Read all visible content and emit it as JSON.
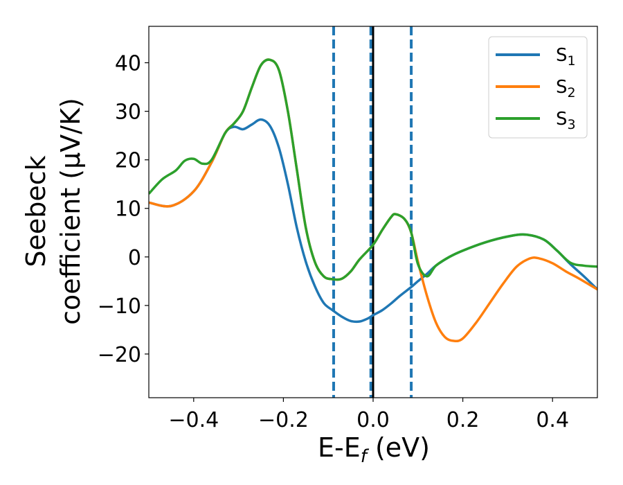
{
  "chart_data": {
    "type": "line",
    "xlabel": {
      "main": "E-E",
      "sub": "f",
      "unit": " (eV)"
    },
    "ylabel": {
      "line1": "Seebeck",
      "line2": "coefficient  (μV/K)"
    },
    "xlim": [
      -0.5,
      0.5
    ],
    "ylim": [
      -29,
      47.5
    ],
    "xticks": [
      -0.4,
      -0.2,
      0.0,
      0.2,
      0.4
    ],
    "xtick_labels": [
      "−0.4",
      "−0.2",
      "0.0",
      "0.2",
      "0.4"
    ],
    "yticks": [
      -20,
      -10,
      0,
      10,
      20,
      30,
      40
    ],
    "ytick_labels": [
      "−20",
      "−10",
      "0",
      "10",
      "20",
      "30",
      "40"
    ],
    "legend": {
      "position": "top-right"
    },
    "vlines": [
      {
        "x": -0.088,
        "style": "dashed",
        "color": "#1f77b4"
      },
      {
        "x": -0.005,
        "style": "dashed",
        "color": "#1f77b4"
      },
      {
        "x": 0.0,
        "style": "solid",
        "color": "#000000"
      },
      {
        "x": 0.085,
        "style": "dashed",
        "color": "#1f77b4"
      }
    ],
    "series": [
      {
        "name": "S",
        "sub": "1",
        "color": "#1f77b4",
        "points": [
          [
            -0.5,
            11.2
          ],
          [
            -0.45,
            10.5
          ],
          [
            -0.4,
            13.5
          ],
          [
            -0.36,
            19.5
          ],
          [
            -0.33,
            25.5
          ],
          [
            -0.31,
            26.8
          ],
          [
            -0.29,
            26.3
          ],
          [
            -0.27,
            27.3
          ],
          [
            -0.25,
            28.3
          ],
          [
            -0.23,
            27.0
          ],
          [
            -0.21,
            22.5
          ],
          [
            -0.19,
            15.0
          ],
          [
            -0.17,
            6.0
          ],
          [
            -0.15,
            -1.0
          ],
          [
            -0.13,
            -6.0
          ],
          [
            -0.11,
            -9.5
          ],
          [
            -0.09,
            -11.0
          ],
          [
            -0.07,
            -12.3
          ],
          [
            -0.05,
            -13.2
          ],
          [
            -0.03,
            -13.3
          ],
          [
            -0.01,
            -12.6
          ],
          [
            0.0,
            -12.0
          ],
          [
            0.02,
            -11.0
          ],
          [
            0.04,
            -9.6
          ],
          [
            0.06,
            -8.0
          ],
          [
            0.085,
            -6.2
          ],
          [
            0.1,
            -5.0
          ],
          [
            0.12,
            -3.5
          ],
          [
            0.14,
            -1.8
          ],
          [
            0.17,
            0.0
          ],
          [
            0.2,
            1.3
          ],
          [
            0.25,
            3.0
          ],
          [
            0.3,
            4.2
          ],
          [
            0.34,
            4.6
          ],
          [
            0.38,
            3.6
          ],
          [
            0.41,
            1.3
          ],
          [
            0.44,
            -1.5
          ],
          [
            0.47,
            -4.0
          ],
          [
            0.5,
            -6.7
          ]
        ]
      },
      {
        "name": "S",
        "sub": "2",
        "color": "#ff7f0e",
        "points": [
          [
            -0.5,
            11.2
          ],
          [
            -0.45,
            10.5
          ],
          [
            -0.4,
            13.5
          ],
          [
            -0.36,
            19.5
          ],
          [
            -0.33,
            25.5
          ],
          [
            -0.31,
            27.5
          ],
          [
            -0.29,
            30.0
          ],
          [
            -0.27,
            35.0
          ],
          [
            -0.25,
            39.5
          ],
          [
            -0.23,
            40.6
          ],
          [
            -0.21,
            38.5
          ],
          [
            -0.19,
            30.0
          ],
          [
            -0.17,
            18.0
          ],
          [
            -0.15,
            6.0
          ],
          [
            -0.13,
            -1.0
          ],
          [
            -0.11,
            -4.0
          ],
          [
            -0.09,
            -4.6
          ],
          [
            -0.07,
            -4.5
          ],
          [
            -0.05,
            -3.0
          ],
          [
            -0.03,
            -0.5
          ],
          [
            0.0,
            2.5
          ],
          [
            0.02,
            5.5
          ],
          [
            0.04,
            8.2
          ],
          [
            0.05,
            8.8
          ],
          [
            0.07,
            7.8
          ],
          [
            0.085,
            5.0
          ],
          [
            0.1,
            -1.0
          ],
          [
            0.12,
            -8.0
          ],
          [
            0.14,
            -13.5
          ],
          [
            0.16,
            -16.5
          ],
          [
            0.18,
            -17.3
          ],
          [
            0.2,
            -16.8
          ],
          [
            0.23,
            -13.5
          ],
          [
            0.26,
            -9.5
          ],
          [
            0.29,
            -5.5
          ],
          [
            0.32,
            -2.0
          ],
          [
            0.35,
            -0.3
          ],
          [
            0.37,
            -0.3
          ],
          [
            0.4,
            -1.3
          ],
          [
            0.43,
            -3.0
          ],
          [
            0.46,
            -4.5
          ],
          [
            0.5,
            -6.7
          ]
        ]
      },
      {
        "name": "S",
        "sub": "3",
        "color": "#2ca02c",
        "points": [
          [
            -0.5,
            13.0
          ],
          [
            -0.47,
            16.0
          ],
          [
            -0.44,
            17.8
          ],
          [
            -0.42,
            19.8
          ],
          [
            -0.4,
            20.2
          ],
          [
            -0.38,
            19.2
          ],
          [
            -0.36,
            20.0
          ],
          [
            -0.33,
            25.5
          ],
          [
            -0.31,
            27.5
          ],
          [
            -0.29,
            30.0
          ],
          [
            -0.27,
            35.0
          ],
          [
            -0.25,
            39.5
          ],
          [
            -0.23,
            40.6
          ],
          [
            -0.21,
            38.5
          ],
          [
            -0.19,
            30.0
          ],
          [
            -0.17,
            18.0
          ],
          [
            -0.15,
            6.0
          ],
          [
            -0.13,
            -1.0
          ],
          [
            -0.11,
            -4.0
          ],
          [
            -0.09,
            -4.6
          ],
          [
            -0.07,
            -4.5
          ],
          [
            -0.05,
            -3.0
          ],
          [
            -0.03,
            -0.5
          ],
          [
            0.0,
            2.5
          ],
          [
            0.02,
            5.5
          ],
          [
            0.04,
            8.2
          ],
          [
            0.05,
            8.8
          ],
          [
            0.07,
            7.8
          ],
          [
            0.085,
            5.0
          ],
          [
            0.1,
            -1.5
          ],
          [
            0.12,
            -4.0
          ],
          [
            0.14,
            -1.8
          ],
          [
            0.17,
            0.0
          ],
          [
            0.2,
            1.3
          ],
          [
            0.25,
            3.0
          ],
          [
            0.3,
            4.2
          ],
          [
            0.34,
            4.6
          ],
          [
            0.38,
            3.6
          ],
          [
            0.41,
            1.3
          ],
          [
            0.44,
            -1.2
          ],
          [
            0.47,
            -1.8
          ],
          [
            0.5,
            -2.0
          ]
        ]
      }
    ]
  }
}
